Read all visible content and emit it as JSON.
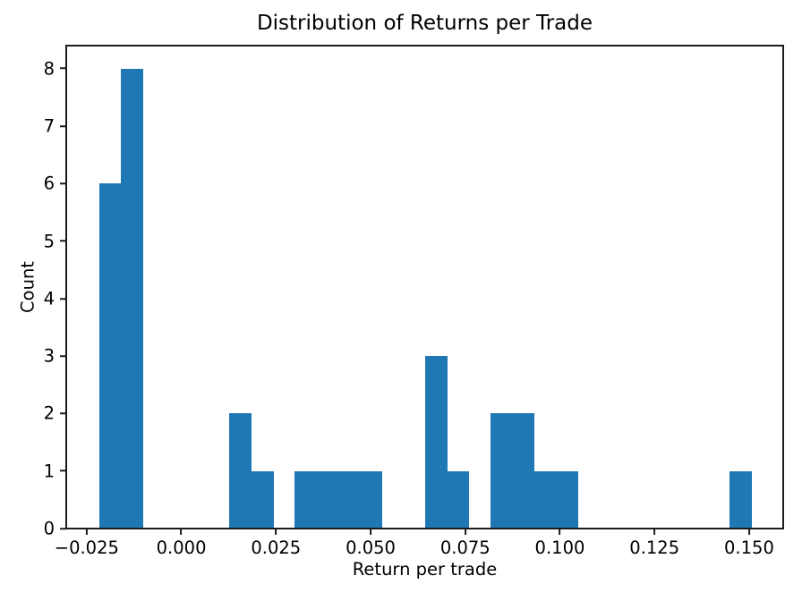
{
  "chart_data": {
    "type": "bar",
    "variant": "histogram",
    "title": "Distribution of Returns per Trade",
    "xlabel": "Return per trade",
    "ylabel": "Count",
    "bar_color": "#1f77b4",
    "axis_color": "#1c1c1c",
    "background_color": "#ffffff",
    "grid": false,
    "bins": {
      "start": -0.0217,
      "width": 0.005742,
      "count": 30
    },
    "counts": [
      6,
      8,
      0,
      0,
      0,
      0,
      2,
      1,
      0,
      1,
      1,
      1,
      1,
      0,
      0,
      3,
      1,
      0,
      2,
      2,
      1,
      1,
      0,
      0,
      0,
      0,
      0,
      0,
      0,
      1
    ],
    "total_observations": 32,
    "xlim": [
      -0.0304,
      0.159
    ],
    "ylim": [
      0,
      8.4
    ],
    "xticks": {
      "values": [
        -0.025,
        0.0,
        0.025,
        0.05,
        0.075,
        0.1,
        0.125,
        0.15
      ],
      "labels": [
        "−0.025",
        "0.000",
        "0.025",
        "0.050",
        "0.075",
        "0.100",
        "0.125",
        "0.150"
      ]
    },
    "yticks": {
      "values": [
        0,
        1,
        2,
        3,
        4,
        5,
        6,
        7,
        8
      ],
      "labels": [
        "0",
        "1",
        "2",
        "3",
        "4",
        "5",
        "6",
        "7",
        "8"
      ]
    }
  }
}
